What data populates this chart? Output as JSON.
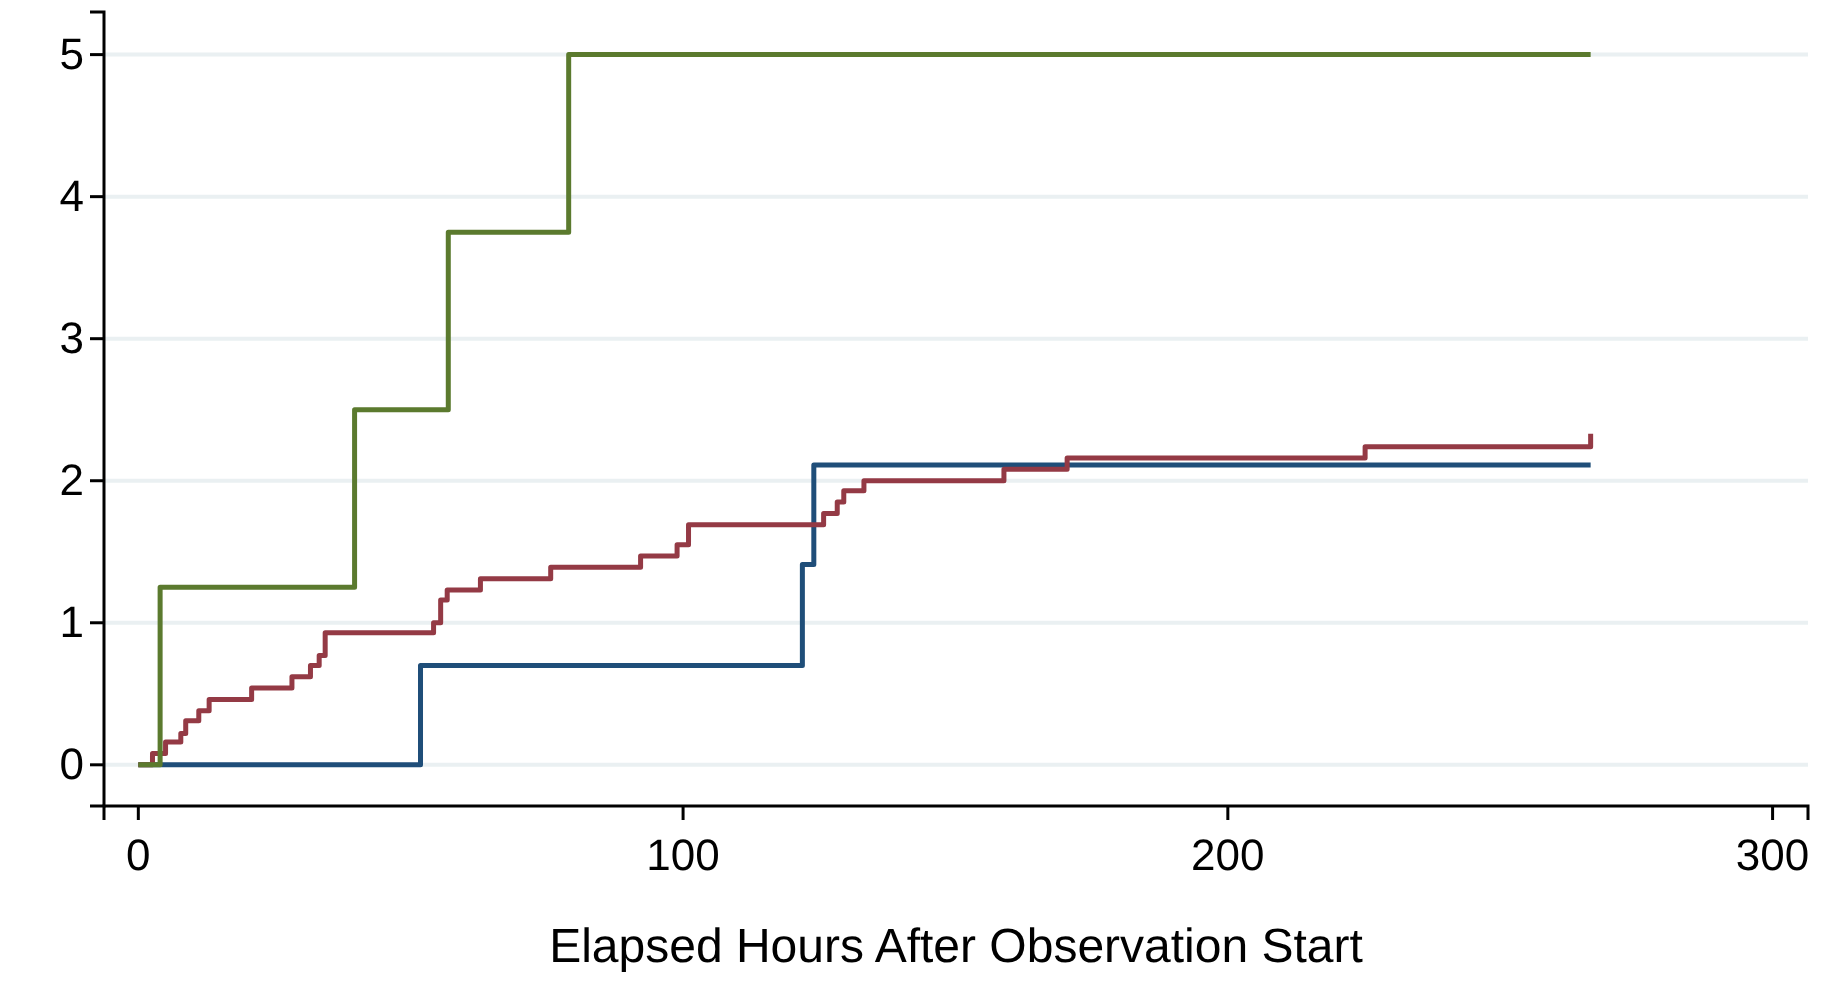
{
  "chart_data": {
    "type": "step",
    "xlabel": "Elapsed Hours After Observation Start",
    "xlim": [
      -6.3,
      306.5
    ],
    "ylim": [
      -0.29,
      5.3
    ],
    "xticks": [
      0,
      100,
      200,
      300
    ],
    "yticks": [
      0,
      1,
      2,
      3,
      4,
      5
    ],
    "grid": "y",
    "series": [
      {
        "color": "#1f4e79",
        "x": [
          0,
          51.8,
          121.9,
          124,
          266.6
        ],
        "values": [
          0,
          0.7,
          1.41,
          2.11,
          2.11
        ]
      },
      {
        "color": "#943a45",
        "x": [
          0,
          2.6,
          5,
          7.8,
          8.7,
          11.1,
          13,
          20.8,
          28.2,
          31.6,
          33.2,
          34.3,
          54.2,
          55.5,
          56.7,
          62.8,
          75.7,
          92.2,
          98.9,
          101,
          125.8,
          128.3,
          129.5,
          133.2,
          158.9,
          170.5,
          225.2,
          266.6
        ],
        "values": [
          0,
          0.08,
          0.16,
          0.22,
          0.31,
          0.38,
          0.46,
          0.54,
          0.62,
          0.7,
          0.77,
          0.93,
          1.0,
          1.16,
          1.23,
          1.31,
          1.39,
          1.47,
          1.55,
          1.69,
          1.77,
          1.85,
          1.93,
          2.0,
          2.08,
          2.16,
          2.24,
          2.33
        ]
      },
      {
        "color": "#5b7a2e",
        "x": [
          0,
          4,
          39.7,
          56.9,
          79,
          266.6
        ],
        "values": [
          0,
          1.25,
          2.5,
          3.75,
          5,
          5
        ]
      }
    ]
  }
}
